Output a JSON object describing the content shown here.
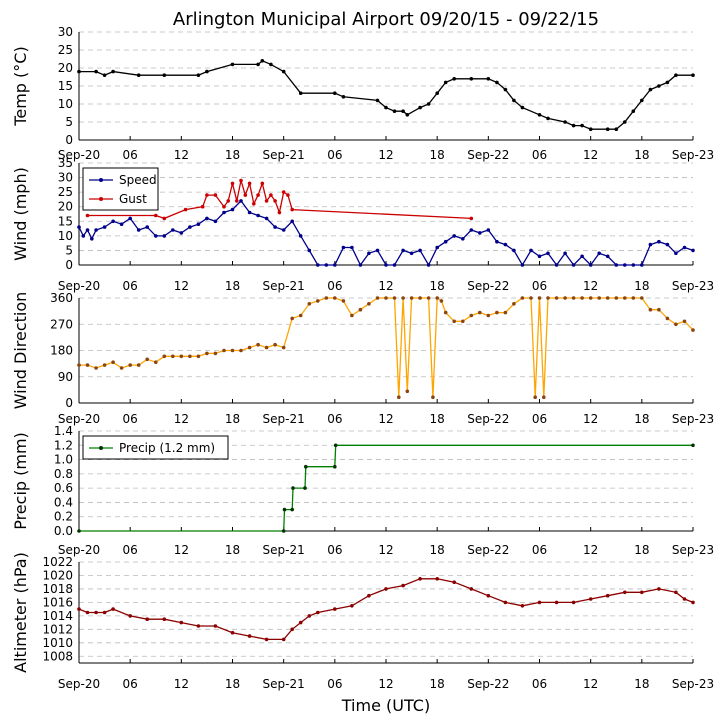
{
  "title": "Arlington Municipal Airport 09/20/15 - 09/22/15",
  "xlabel": "Time (UTC)",
  "x_range_hours": [
    0,
    72
  ],
  "x_ticks": [
    {
      "h": 0,
      "label": "Sep-20"
    },
    {
      "h": 6,
      "label": "06"
    },
    {
      "h": 12,
      "label": "12"
    },
    {
      "h": 18,
      "label": "18"
    },
    {
      "h": 24,
      "label": "Sep-21"
    },
    {
      "h": 30,
      "label": "06"
    },
    {
      "h": 36,
      "label": "12"
    },
    {
      "h": 42,
      "label": "18"
    },
    {
      "h": 48,
      "label": "Sep-22"
    },
    {
      "h": 54,
      "label": "06"
    },
    {
      "h": 60,
      "label": "12"
    },
    {
      "h": 66,
      "label": "18"
    },
    {
      "h": 72,
      "label": "Sep-23"
    }
  ],
  "colors": {
    "temp": "#000000",
    "speed": "#00008b",
    "gust": "#cc0000",
    "direction_line": "#ffa500",
    "direction_marker": "#8b4513",
    "precip_line": "#008000",
    "precip_marker": "#003300",
    "altimeter": "#8b0000",
    "grid": "#bbbbbb"
  },
  "chart_data": [
    {
      "id": "temp",
      "type": "line",
      "ylabel": "Temp (°C)",
      "ylim": [
        0,
        30
      ],
      "yticks": [
        "0",
        "5",
        "10",
        "15",
        "20",
        "25",
        "30"
      ],
      "series": [
        {
          "name": "Temperature",
          "x": [
            0,
            2,
            3,
            4,
            7,
            10,
            14,
            15,
            18,
            21,
            21.5,
            22.5,
            24,
            26,
            30,
            31,
            35,
            36,
            37,
            38,
            38.5,
            40,
            41,
            42,
            43,
            44,
            46,
            48,
            49,
            50,
            51,
            52,
            54,
            55,
            57,
            58,
            59,
            60,
            62,
            63,
            64,
            65,
            66,
            67,
            68,
            69,
            70,
            72
          ],
          "values": [
            19,
            19,
            18,
            19,
            18,
            18,
            18,
            19,
            21,
            21,
            22,
            21,
            19,
            13,
            13,
            12,
            11,
            9,
            8,
            8,
            7,
            9,
            10,
            13,
            16,
            17,
            17,
            17,
            16,
            14,
            11,
            9,
            7,
            6,
            5,
            4,
            4,
            3,
            3,
            3,
            5,
            8,
            11,
            14,
            15,
            16,
            18,
            18
          ]
        }
      ]
    },
    {
      "id": "wind",
      "type": "line",
      "ylabel": "Wind (mph)",
      "ylim": [
        0,
        35
      ],
      "yticks": [
        "0",
        "5",
        "10",
        "15",
        "20",
        "25",
        "30",
        "35"
      ],
      "legend": {
        "position": "top-left",
        "entries": [
          "Speed",
          "Gust"
        ]
      },
      "series": [
        {
          "name": "Speed",
          "x": [
            0,
            0.5,
            1,
            1.5,
            2,
            3,
            4,
            5,
            6,
            7,
            8,
            9,
            10,
            11,
            12,
            13,
            14,
            15,
            16,
            17,
            18,
            19,
            20,
            21,
            22,
            23,
            24,
            25,
            26,
            27,
            28,
            29,
            30,
            31,
            32,
            33,
            34,
            35,
            36,
            37,
            38,
            39,
            40,
            41,
            42,
            43,
            44,
            45,
            46,
            47,
            48,
            49,
            50,
            51,
            52,
            53,
            54,
            55,
            56,
            57,
            58,
            59,
            60,
            61,
            62,
            63,
            64,
            65,
            66,
            67,
            68,
            69,
            70,
            71,
            72
          ],
          "values": [
            13,
            10,
            12,
            9,
            12,
            13,
            15,
            14,
            16,
            12,
            13,
            10,
            10,
            12,
            11,
            13,
            14,
            16,
            15,
            18,
            19,
            22,
            18,
            17,
            16,
            13,
            12,
            15,
            10,
            5,
            0,
            0,
            0,
            6,
            6,
            0,
            4,
            5,
            0,
            0,
            5,
            4,
            5,
            0,
            6,
            8,
            10,
            9,
            12,
            11,
            12,
            8,
            7,
            5,
            0,
            5,
            3,
            4,
            0,
            4,
            0,
            3,
            0,
            4,
            3,
            0,
            0,
            0,
            0,
            7,
            8,
            7,
            4,
            6,
            5
          ]
        },
        {
          "name": "Gust",
          "x": [
            1,
            9,
            10,
            12.5,
            14.5,
            15,
            16,
            17,
            17.5,
            18,
            18.5,
            19,
            19.5,
            20,
            20.5,
            21,
            21.5,
            22,
            22.5,
            23,
            23.5,
            24,
            24.5,
            25,
            46
          ],
          "values": [
            17,
            17,
            16,
            19,
            20,
            24,
            24,
            20,
            22,
            28,
            22,
            29,
            24,
            28,
            21,
            24,
            28,
            22,
            24,
            22,
            18,
            25,
            24,
            19,
            16
          ]
        }
      ]
    },
    {
      "id": "direction",
      "type": "line",
      "ylabel": "Wind Direction",
      "ylim": [
        0,
        360
      ],
      "yticks": [
        "0",
        "90",
        "180",
        "270",
        "360"
      ],
      "series": [
        {
          "name": "Direction",
          "x": [
            0,
            1,
            2,
            3,
            4,
            5,
            6,
            7,
            8,
            9,
            10,
            11,
            12,
            13,
            14,
            15,
            16,
            17,
            18,
            19,
            20,
            21,
            22,
            23,
            24,
            25,
            26,
            27,
            28,
            29,
            30,
            31,
            32,
            33,
            34,
            35,
            36,
            37,
            37.5,
            38,
            38.5,
            39,
            40,
            41,
            41.5,
            42,
            42.5,
            43,
            44,
            45,
            46,
            47,
            48,
            49,
            50,
            51,
            52,
            53,
            53.5,
            54,
            54.5,
            55,
            56,
            57,
            58,
            59,
            60,
            61,
            62,
            63,
            64,
            65,
            66,
            67,
            68,
            69,
            70,
            71,
            72
          ],
          "values": [
            130,
            130,
            120,
            130,
            140,
            120,
            130,
            130,
            150,
            140,
            160,
            160,
            160,
            160,
            160,
            170,
            170,
            180,
            180,
            180,
            190,
            200,
            190,
            200,
            190,
            290,
            300,
            340,
            350,
            360,
            360,
            350,
            300,
            320,
            340,
            360,
            360,
            360,
            20,
            360,
            40,
            360,
            360,
            360,
            20,
            360,
            350,
            310,
            280,
            280,
            300,
            310,
            300,
            310,
            310,
            340,
            360,
            360,
            20,
            360,
            20,
            360,
            360,
            360,
            360,
            360,
            360,
            360,
            360,
            360,
            360,
            360,
            360,
            320,
            320,
            290,
            270,
            280,
            250
          ]
        }
      ]
    },
    {
      "id": "precip",
      "type": "line",
      "ylabel": "Precip (mm)",
      "ylim": [
        0,
        1.4
      ],
      "yticks": [
        "0.0",
        "0.2",
        "0.4",
        "0.6",
        "0.8",
        "1.0",
        "1.2",
        "1.4"
      ],
      "legend": {
        "position": "top-left",
        "entries": [
          "Precip (1.2 mm)"
        ]
      },
      "series": [
        {
          "name": "Precip (1.2 mm)",
          "x": [
            0,
            24,
            24.1,
            25,
            25.1,
            26.5,
            26.6,
            30,
            30.1,
            72
          ],
          "values": [
            0,
            0,
            0.3,
            0.3,
            0.6,
            0.6,
            0.9,
            0.9,
            1.2,
            1.2
          ]
        }
      ]
    },
    {
      "id": "altimeter",
      "type": "line",
      "ylabel": "Altimeter (hPa)",
      "ylim": [
        1007,
        1022
      ],
      "yticks": [
        "1008",
        "1010",
        "1012",
        "1014",
        "1016",
        "1018",
        "1020",
        "1022"
      ],
      "series": [
        {
          "name": "Altimeter",
          "x": [
            0,
            1,
            2,
            3,
            4,
            6,
            8,
            10,
            12,
            14,
            16,
            18,
            20,
            22,
            24,
            25,
            26,
            27,
            28,
            30,
            32,
            34,
            36,
            38,
            40,
            42,
            44,
            46,
            48,
            50,
            52,
            54,
            56,
            58,
            60,
            62,
            64,
            66,
            68,
            70,
            71,
            72
          ],
          "values": [
            1015,
            1014.5,
            1014.5,
            1014.5,
            1015,
            1014,
            1013.5,
            1013.5,
            1013,
            1012.5,
            1012.5,
            1011.5,
            1011,
            1010.5,
            1010.5,
            1012,
            1013,
            1014,
            1014.5,
            1015,
            1015.5,
            1017,
            1018,
            1018.5,
            1019.5,
            1019.5,
            1019,
            1018,
            1017,
            1016,
            1015.5,
            1016,
            1016,
            1016,
            1016.5,
            1017,
            1017.5,
            1017.5,
            1018,
            1017.5,
            1016.5,
            1016
          ]
        }
      ]
    }
  ]
}
